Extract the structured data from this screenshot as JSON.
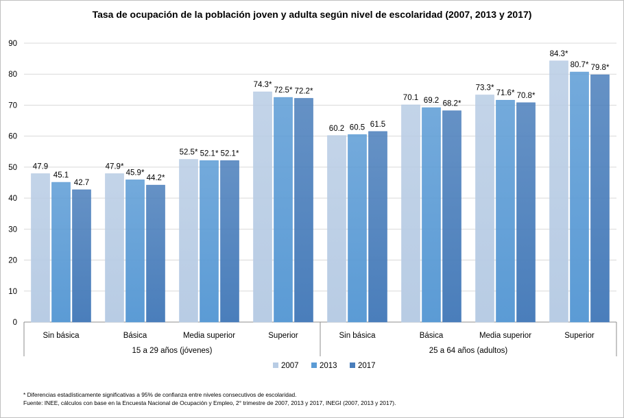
{
  "chart_data": {
    "type": "bar",
    "title": "Tasa de ocupación de la población joven y adulta según nivel de escolaridad (2007, 2013 y 2017)",
    "ylim": [
      0,
      90
    ],
    "yticks": [
      0,
      10,
      20,
      30,
      40,
      50,
      60,
      70,
      80,
      90
    ],
    "grid": true,
    "legend_position": "bottom",
    "groups": [
      {
        "label": "15 a 29 años (jóvenes)",
        "categories": [
          "Sin básica",
          "Básica",
          "Media superior",
          "Superior"
        ]
      },
      {
        "label": "25 a 64 años  (adultos)",
        "categories": [
          "Sin básica",
          "Básica",
          "Media superior",
          "Superior"
        ]
      }
    ],
    "categories": [
      "Sin básica",
      "Básica",
      "Media superior",
      "Superior",
      "Sin básica",
      "Básica",
      "Media superior",
      "Superior"
    ],
    "series": [
      {
        "name": "2007",
        "color": "#b8cce4",
        "values": [
          47.9,
          47.9,
          52.5,
          74.3,
          60.2,
          70.1,
          73.3,
          84.3
        ],
        "labels": [
          "47.9",
          "47.9*",
          "52.5*",
          "74.3*",
          "60.2",
          "70.1",
          "73.3*",
          "84.3*"
        ]
      },
      {
        "name": "2013",
        "color": "#5b9bd5",
        "values": [
          45.1,
          45.9,
          52.1,
          72.5,
          60.5,
          69.2,
          71.6,
          80.7
        ],
        "labels": [
          "45.1",
          "45.9*",
          "52.1*",
          "72.5*",
          "60.5",
          "69.2",
          "71.6*",
          "80.7*"
        ]
      },
      {
        "name": "2017",
        "color": "#4a7ebb",
        "values": [
          42.7,
          44.2,
          52.1,
          72.2,
          61.5,
          68.2,
          70.8,
          79.8
        ],
        "labels": [
          "42.7",
          "44.2*",
          "52.1*",
          "72.2*",
          "61.5",
          "68.2*",
          "70.8*",
          "79.8*"
        ]
      }
    ]
  },
  "notes": {
    "asterisk": "* Diferencias estadísticamente significativas a 95% de confianza entre niveles consecutivos de escolaridad.",
    "source": "Fuente: INEE, cálculos con base en la Encuesta Nacional de Ocupación y Empleo, 2° trimestre de 2007, 2013 y 2017,  INEGI (2007, 2013  y 2017)."
  }
}
